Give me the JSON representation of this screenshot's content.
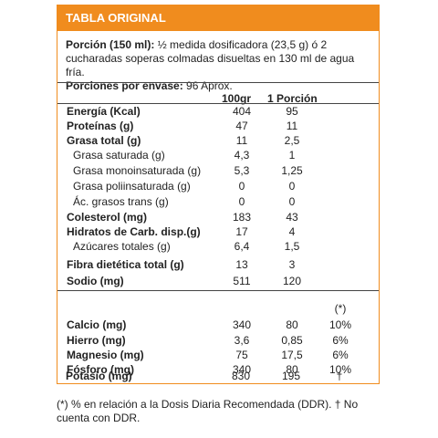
{
  "header": {
    "title": "TABLA ORIGINAL"
  },
  "portion": {
    "label": "Porción (150 ml):",
    "text": " ½ medida dosificadora (23,5 g) ó 2 cucharadas soperas colmadas disueltas en 130 ml de agua fría.",
    "servings_label": "Porciones por envase:",
    "servings_value": " 96 Aprox."
  },
  "columns": {
    "per100": "100gr",
    "perPortion": "1 Porción",
    "pct": "(*)"
  },
  "rows": [
    {
      "label": "Energía (Kcal)",
      "v100": "404",
      "vPortion": "95"
    },
    {
      "label": "Proteínas (g)",
      "v100": "47",
      "vPortion": "11"
    },
    {
      "label": "Grasa total (g)",
      "v100": "11",
      "vPortion": "2,5"
    },
    {
      "label": "Grasa saturada (g)",
      "v100": "4,3",
      "vPortion": "1"
    },
    {
      "label": "Grasa monoinsaturada (g)",
      "v100": "5,3",
      "vPortion": "1,25"
    },
    {
      "label": "Grasa poliinsaturada (g)",
      "v100": "0",
      "vPortion": "0"
    },
    {
      "label": "Ác. grasos trans (g)",
      "v100": "0",
      "vPortion": "0"
    },
    {
      "label": "Colesterol (mg)",
      "v100": "183",
      "vPortion": "43"
    },
    {
      "label": "Hidratos de Carb. disp.(g)",
      "v100": "17",
      "vPortion": "4"
    },
    {
      "label": "Azúcares totales (g)",
      "v100": "6,4",
      "vPortion": "1,5"
    },
    {
      "label": "Fibra dietética total (g)",
      "v100": "13",
      "vPortion": "3"
    },
    {
      "label": "Sodio (mg)",
      "v100": "511",
      "vPortion": "120"
    }
  ],
  "minerals": [
    {
      "label": "Calcio (mg)",
      "v100": "340",
      "vPortion": "80",
      "pct": "10%"
    },
    {
      "label": "Hierro (mg)",
      "v100": "3,6",
      "vPortion": "0,85",
      "pct": "6%"
    },
    {
      "label": "Magnesio (mg)",
      "v100": "75",
      "vPortion": "17,5",
      "pct": "6%"
    },
    {
      "label": "Fósforo (mg)",
      "v100": "340",
      "vPortion": "80",
      "pct": "10%"
    },
    {
      "label": "Potasio (mg)",
      "v100": "830",
      "vPortion": "195",
      "pct": "†"
    }
  ],
  "footnote": "(*) % en relación a la Dosis Diaria Recomendada (DDR). † No cuenta con DDR."
}
